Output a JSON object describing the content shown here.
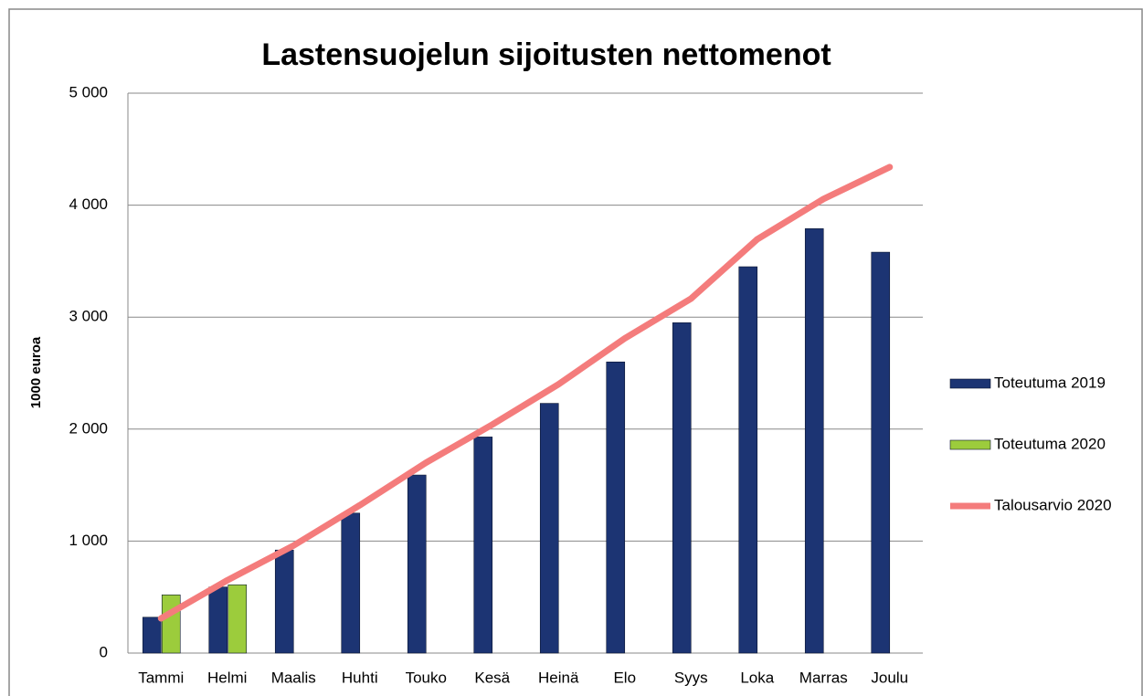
{
  "chart_data": {
    "type": "bar",
    "title": "Lastensuojelun sijoitusten nettomenot",
    "ylabel": "1000 euroa",
    "categories": [
      "Tammi",
      "Helmi",
      "Maalis",
      "Huhti",
      "Touko",
      "Kesä",
      "Heinä",
      "Elo",
      "Syys",
      "Loka",
      "Marras",
      "Joulu"
    ],
    "series": [
      {
        "name": "Toteutuma 2019",
        "type": "bar",
        "color": "#1c3473",
        "values": [
          320,
          590,
          920,
          1250,
          1590,
          1930,
          2230,
          2600,
          2950,
          3450,
          3790,
          3580
        ]
      },
      {
        "name": "Toteutuma 2020",
        "type": "bar",
        "color": "#9ccc3c",
        "values": [
          520,
          610,
          null,
          null,
          null,
          null,
          null,
          null,
          null,
          null,
          null,
          null
        ]
      },
      {
        "name": "Talousarvio 2020",
        "type": "line",
        "color": "#f47c7c",
        "values": [
          310,
          650,
          960,
          1320,
          1700,
          2040,
          2400,
          2810,
          3165,
          3695,
          4055,
          4340
        ]
      }
    ],
    "ylim": [
      0,
      5000
    ],
    "yticks": [
      0,
      {
        "value": 1000,
        "label": "1 000"
      },
      {
        "value": 2000,
        "label": "2 000"
      },
      {
        "value": 3000,
        "label": "3 000"
      },
      {
        "value": 4000,
        "label": "4 000"
      },
      {
        "value": 5000,
        "label": "5 000"
      }
    ],
    "grid": true,
    "legend": "right"
  }
}
